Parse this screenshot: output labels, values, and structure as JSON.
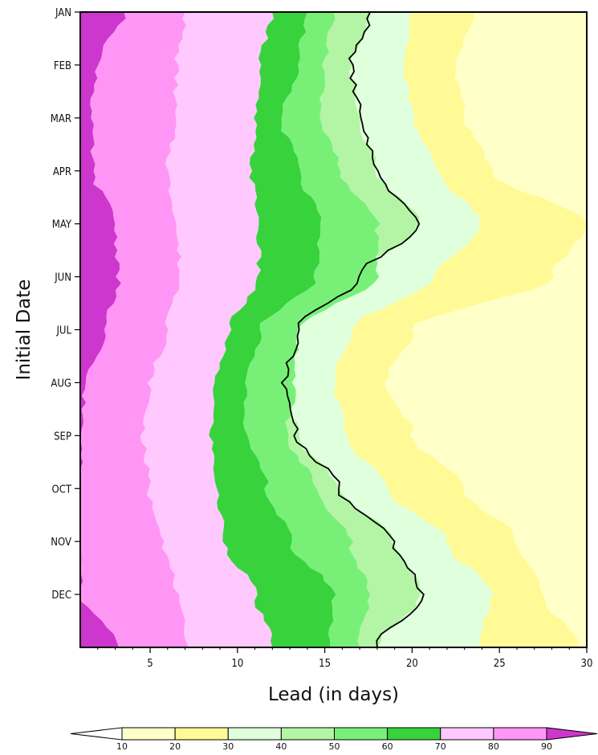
{
  "chart_data": {
    "type": "contour",
    "xlabel": "Lead (in days)",
    "ylabel": "Initial Date",
    "x_range": [
      1,
      30
    ],
    "x_ticks": [
      5,
      10,
      15,
      20,
      25,
      30
    ],
    "y_ticks": [
      "JAN",
      "FEB",
      "MAR",
      "APR",
      "MAY",
      "JUN",
      "JUL",
      "AUG",
      "SEP",
      "OCT",
      "NOV",
      "DEC"
    ],
    "levels": [
      10,
      20,
      30,
      40,
      50,
      60,
      70,
      80,
      90
    ],
    "level_colors": [
      "#ffffff",
      "#ffffc8",
      "#fffa96",
      "#e0ffdc",
      "#b4f5a5",
      "#78f078",
      "#37d23c",
      "#ffc8ff",
      "#ff96f5",
      "#cd37cd"
    ],
    "colorbar_labels": [
      "10",
      "20",
      "30",
      "40",
      "50",
      "60",
      "70",
      "80",
      "90"
    ],
    "contour_lines": [
      {
        "level": 90,
        "lead_days_by_month": [
          3.5,
          2.0,
          1.6,
          1.7,
          3.0,
          3.2,
          2.4,
          1.3,
          1.0,
          1.0,
          1.0,
          1.0,
          3.2
        ]
      },
      {
        "level": 80,
        "lead_days_by_month": [
          7.0,
          6.5,
          6.4,
          6.0,
          6.5,
          6.7,
          6.0,
          5.0,
          4.6,
          4.9,
          5.8,
          6.5,
          7.2
        ]
      },
      {
        "level": 70,
        "lead_days_by_month": [
          12.0,
          11.3,
          11.0,
          10.8,
          11.2,
          11.2,
          9.5,
          8.7,
          8.5,
          8.8,
          9.3,
          11.0,
          12.0
        ]
      },
      {
        "level": 60,
        "lead_days_by_month": [
          14.0,
          13.4,
          12.5,
          13.5,
          14.7,
          14.5,
          11.3,
          10.5,
          10.5,
          11.7,
          13.0,
          15.5,
          15.3
        ]
      },
      {
        "level": 50,
        "lead_days_by_month": [
          15.5,
          15.0,
          14.8,
          15.8,
          18.0,
          18.0,
          13.5,
          13.3,
          12.8,
          14.5,
          16.5,
          17.5,
          17.0
        ]
      },
      {
        "level": 40,
        "lead_days_by_month": [
          17.6,
          16.5,
          17.0,
          18.0,
          20.4,
          17.0,
          13.5,
          12.7,
          13.4,
          15.8,
          19.0,
          20.5,
          18.0
        ]
      },
      {
        "level": 30,
        "lead_days_by_month": [
          20.0,
          19.5,
          20.0,
          21.5,
          24.0,
          21.3,
          16.5,
          15.5,
          16.2,
          18.5,
          22.0,
          24.5,
          23.8
        ]
      },
      {
        "level": 20,
        "lead_days_by_month": [
          23.5,
          22.5,
          23.0,
          24.5,
          30.0,
          28.0,
          20.0,
          18.5,
          20.0,
          23.0,
          26.0,
          27.5,
          29.5
        ]
      }
    ]
  }
}
